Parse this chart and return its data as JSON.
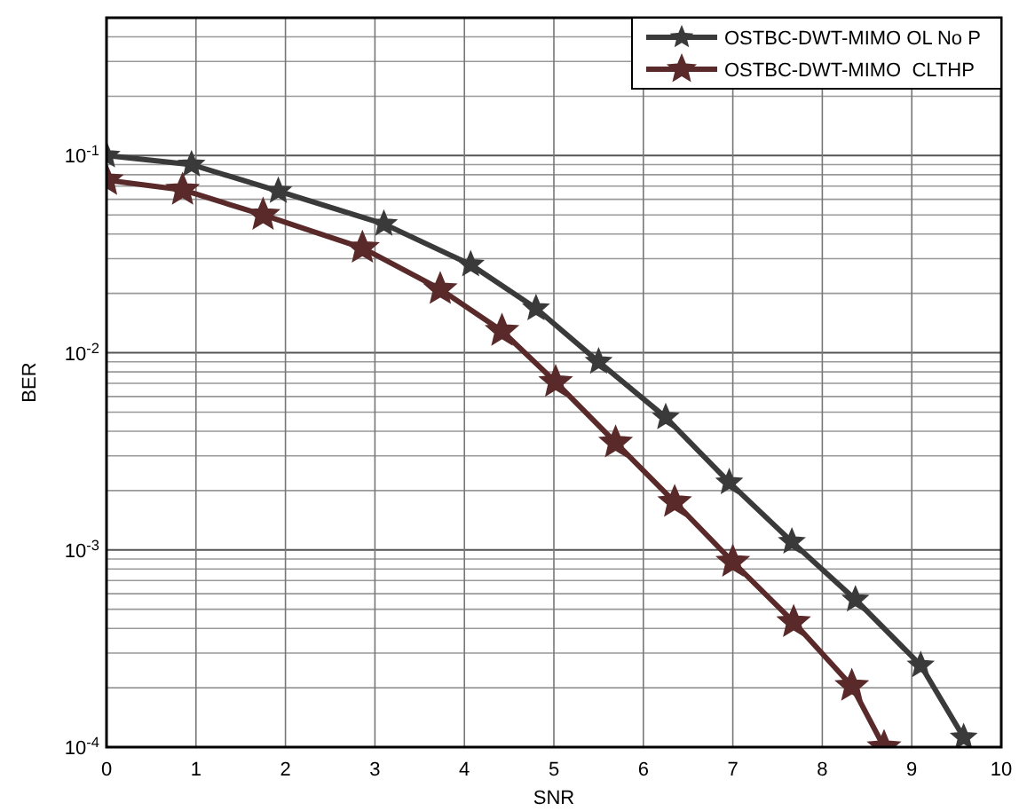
{
  "chart_data": {
    "type": "line",
    "xlabel": "SNR",
    "ylabel": "BER",
    "log": "y",
    "grid": true,
    "legend": "top right",
    "marker": "star",
    "line_style": "solid",
    "xlim": [
      0,
      10
    ],
    "xticks": [
      0,
      1,
      2,
      3,
      4,
      5,
      6,
      7,
      8,
      9,
      10
    ],
    "ylim": [
      0.0001,
      0.5
    ],
    "yticks": [
      {
        "value": 0.0001,
        "label": "10$^{-4}$"
      },
      {
        "value": 0.001,
        "label": "10$^{-3}$"
      },
      {
        "value": 0.01,
        "label": "10$^{-2}$"
      },
      {
        "value": 0.1,
        "label": "10$^{-1}$"
      }
    ],
    "series": [
      {
        "name": "OSTBC-DWT-MIMO OL No P",
        "color": "#3a3a3a",
        "x": [
          0,
          0.95,
          1.92,
          3.1,
          4.07,
          4.8,
          5.5,
          6.25,
          6.96,
          7.66,
          8.37,
          9.1,
          9.58
        ],
        "values": [
          0.1,
          0.09,
          0.066,
          0.045,
          0.028,
          0.0168,
          0.009,
          0.0047,
          0.0022,
          0.0011,
          0.00056,
          0.00026,
          0.000112
        ]
      },
      {
        "name": "OSTBC-DWT-MIMO  CLTHP",
        "color": "#5a2a2a",
        "x": [
          0,
          0.85,
          1.75,
          2.86,
          3.73,
          4.42,
          5.02,
          5.69,
          6.35,
          7.0,
          7.68,
          8.33,
          8.69
        ],
        "values": [
          0.075,
          0.067,
          0.05,
          0.034,
          0.021,
          0.0129,
          0.0071,
          0.0035,
          0.00175,
          0.00087,
          0.00043,
          0.000204,
          0.0001
        ]
      }
    ]
  }
}
